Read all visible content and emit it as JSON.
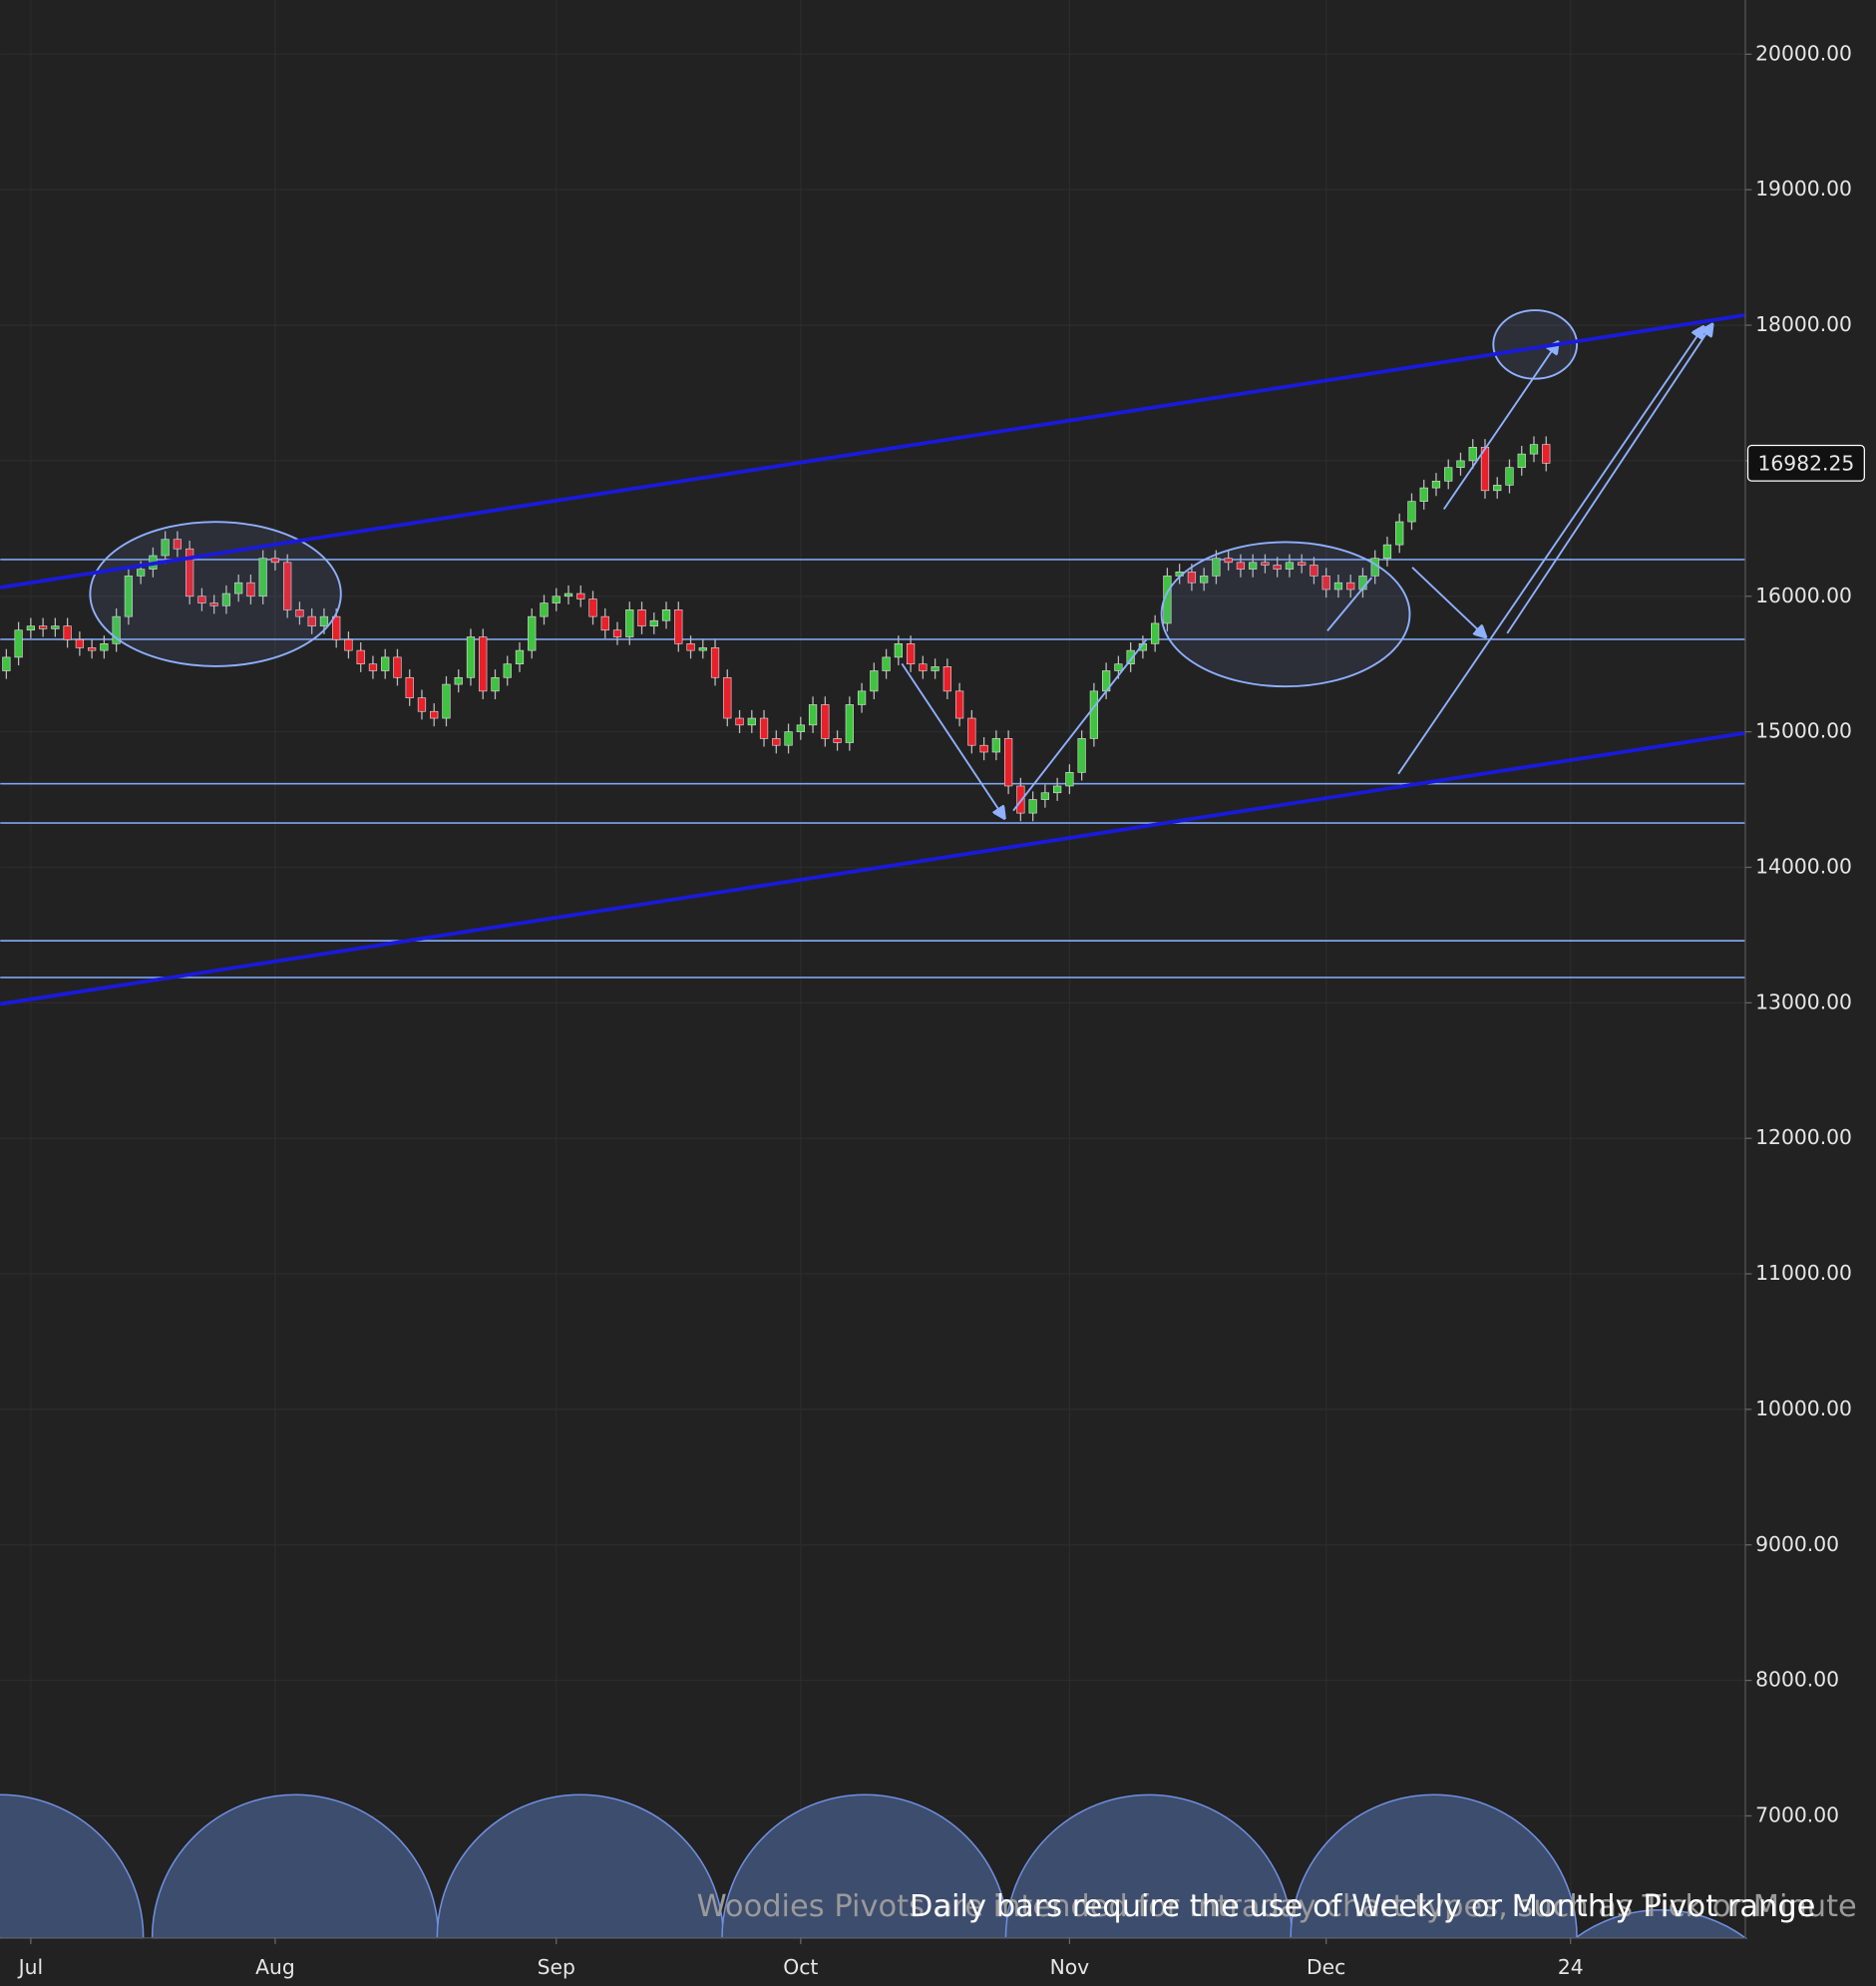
{
  "chart_data": {
    "type": "candlestick",
    "xlim": [
      -0.5,
      142.3
    ],
    "xticks": [
      {
        "value": 2,
        "label": "Jul"
      },
      {
        "value": 22,
        "label": "Aug"
      },
      {
        "value": 45,
        "label": "Sep"
      },
      {
        "value": 65,
        "label": "Oct"
      },
      {
        "value": 87,
        "label": "Nov"
      },
      {
        "value": 108,
        "label": "Dec"
      },
      {
        "value": 128,
        "label": "24"
      }
    ],
    "ylim": [
      6100,
      20400
    ],
    "yticks": [
      {
        "value": 7000,
        "label": "7000.00"
      },
      {
        "value": 8000,
        "label": "8000.00"
      },
      {
        "value": 9000,
        "label": "9000.00"
      },
      {
        "value": 10000,
        "label": "10000.00"
      },
      {
        "value": 11000,
        "label": "11000.00"
      },
      {
        "value": 12000,
        "label": "12000.00"
      },
      {
        "value": 13000,
        "label": "13000.00"
      },
      {
        "value": 14000,
        "label": "14000.00"
      },
      {
        "value": 15000,
        "label": "15000.00"
      },
      {
        "value": 16000,
        "label": "16000.00"
      },
      {
        "value": 17000,
        "label": "17000.00"
      },
      {
        "value": 18000,
        "label": "18000.00"
      },
      {
        "value": 19000,
        "label": "19000.00"
      },
      {
        "value": 20000,
        "label": "20000.00"
      }
    ],
    "grid": true,
    "up_color": "#3ec43e",
    "down_color": "#e8202a",
    "open": [
      15450,
      15550,
      15750,
      15780,
      15760,
      15780,
      15680,
      15620,
      15600,
      15650,
      15850,
      16150,
      16200,
      16300,
      16420,
      16350,
      16000,
      15950,
      15930,
      16020,
      16100,
      16000,
      16280,
      16250,
      15900,
      15850,
      15780,
      15850,
      15680,
      15600,
      15500,
      15450,
      15550,
      15400,
      15250,
      15150,
      15100,
      15350,
      15400,
      15700,
      15300,
      15400,
      15500,
      15600,
      15850,
      15950,
      16000,
      16020,
      15980,
      15850,
      15750,
      15700,
      15900,
      15780,
      15820,
      15900,
      15650,
      15600,
      15620,
      15400,
      15100,
      15050,
      15100,
      14950,
      14900,
      15000,
      15050,
      15200,
      14950,
      14920,
      15200,
      15300,
      15450,
      15550,
      15650,
      15500,
      15450,
      15480,
      15300,
      15100,
      14900,
      14850,
      14950,
      14600,
      14400,
      14500,
      14550,
      14600,
      14700,
      14950,
      15300,
      15450,
      15500,
      15600,
      15650,
      15800,
      16150,
      16180,
      16100,
      16150,
      16280,
      16250,
      16200,
      16250,
      16230,
      16200,
      16250,
      16230,
      16150,
      16050,
      16100,
      16050,
      16150,
      16280,
      16380,
      16550,
      16700,
      16800,
      16850,
      16950,
      17000,
      17100,
      16780,
      16820,
      16950,
      17050,
      17120
    ],
    "high": [
      15610,
      15810,
      15840,
      15840,
      15840,
      15840,
      15740,
      15680,
      15710,
      15910,
      16210,
      16260,
      16360,
      16480,
      16480,
      16410,
      16060,
      16010,
      16080,
      16160,
      16160,
      16340,
      16340,
      16310,
      15960,
      15910,
      15910,
      15910,
      15740,
      15660,
      15560,
      15610,
      15610,
      15460,
      15310,
      15210,
      15410,
      15460,
      15760,
      15760,
      15460,
      15560,
      15660,
      15910,
      16010,
      16060,
      16080,
      16080,
      16040,
      15910,
      15810,
      15960,
      15960,
      15880,
      15960,
      15960,
      15710,
      15680,
      15680,
      15460,
      15160,
      15160,
      15160,
      15010,
      15060,
      15110,
      15260,
      15260,
      15010,
      15260,
      15360,
      15510,
      15610,
      15710,
      15710,
      15560,
      15540,
      15540,
      15360,
      15160,
      14960,
      15010,
      15010,
      14660,
      14560,
      14610,
      14660,
      14760,
      15010,
      15360,
      15510,
      15560,
      15660,
      15710,
      15860,
      16210,
      16240,
      16240,
      16210,
      16340,
      16340,
      16310,
      16310,
      16310,
      16290,
      16310,
      16310,
      16290,
      16210,
      16160,
      16160,
      16210,
      16340,
      16440,
      16610,
      16760,
      16860,
      16910,
      17010,
      17060,
      17160,
      17160,
      16880,
      17010,
      17110,
      17180,
      17180
    ],
    "low": [
      15390,
      15490,
      15690,
      15700,
      15700,
      15620,
      15560,
      15540,
      15540,
      15590,
      15790,
      16090,
      16140,
      16240,
      16290,
      15940,
      15890,
      15870,
      15870,
      15960,
      15940,
      15940,
      16190,
      15840,
      15790,
      15720,
      15720,
      15620,
      15540,
      15440,
      15390,
      15390,
      15340,
      15190,
      15090,
      15040,
      15040,
      15290,
      15340,
      15240,
      15240,
      15340,
      15440,
      15540,
      15790,
      15890,
      15940,
      15920,
      15790,
      15690,
      15640,
      15640,
      15720,
      15720,
      15760,
      15590,
      15540,
      15540,
      15340,
      15040,
      14990,
      14990,
      14890,
      14840,
      14840,
      14940,
      14990,
      14890,
      14860,
      14860,
      15140,
      15240,
      15390,
      15490,
      15440,
      15390,
      15390,
      15240,
      15040,
      14840,
      14790,
      14790,
      14540,
      14340,
      14340,
      14440,
      14490,
      14540,
      14640,
      14890,
      15240,
      15390,
      15440,
      15540,
      15590,
      15740,
      16090,
      16040,
      16040,
      16090,
      16190,
      16140,
      16140,
      16170,
      16140,
      16140,
      16170,
      16090,
      15990,
      15990,
      15990,
      15990,
      16090,
      16220,
      16320,
      16490,
      16640,
      16740,
      16790,
      16890,
      16940,
      16720,
      16720,
      16760,
      16890,
      16990,
      16922.25
    ],
    "close": [
      15550,
      15750,
      15780,
      15760,
      15780,
      15680,
      15620,
      15600,
      15650,
      15850,
      16150,
      16200,
      16300,
      16420,
      16350,
      16000,
      15950,
      15930,
      16020,
      16100,
      16000,
      16280,
      16250,
      15900,
      15850,
      15780,
      15850,
      15680,
      15600,
      15500,
      15450,
      15550,
      15400,
      15250,
      15150,
      15100,
      15350,
      15400,
      15700,
      15300,
      15400,
      15500,
      15600,
      15850,
      15950,
      16000,
      16020,
      15980,
      15850,
      15750,
      15700,
      15900,
      15780,
      15820,
      15900,
      15650,
      15600,
      15620,
      15400,
      15100,
      15050,
      15100,
      14950,
      14900,
      15000,
      15050,
      15200,
      14950,
      14920,
      15200,
      15300,
      15450,
      15550,
      15650,
      15500,
      15450,
      15480,
      15300,
      15100,
      14900,
      14850,
      14950,
      14600,
      14400,
      14500,
      14550,
      14600,
      14700,
      14950,
      15300,
      15450,
      15500,
      15600,
      15650,
      15800,
      16150,
      16180,
      16100,
      16150,
      16280,
      16250,
      16200,
      16250,
      16230,
      16200,
      16250,
      16230,
      16150,
      16050,
      16100,
      16050,
      16150,
      16280,
      16380,
      16550,
      16700,
      16800,
      16850,
      16950,
      17000,
      17100,
      16780,
      16820,
      16950,
      17050,
      17120,
      16982.25
    ],
    "levels": [
      16271,
      15682,
      14617,
      14327,
      13458,
      13187
    ],
    "level_color": "#7fa4ee",
    "trendlines": [
      {
        "x": [
          -0.5,
          142.3
        ],
        "y": [
          16065,
          18075
        ]
      },
      {
        "x": [
          -0.5,
          142.3
        ],
        "y": [
          12991,
          14991
        ]
      }
    ],
    "trendline_color": "#1a1adb",
    "notes": [
      "Woodies Pivots are intended for Intraday chart types, such as Tick or Minute",
      "Daily bars require the use of Weekly or Monthly Pivot range"
    ]
  }
}
